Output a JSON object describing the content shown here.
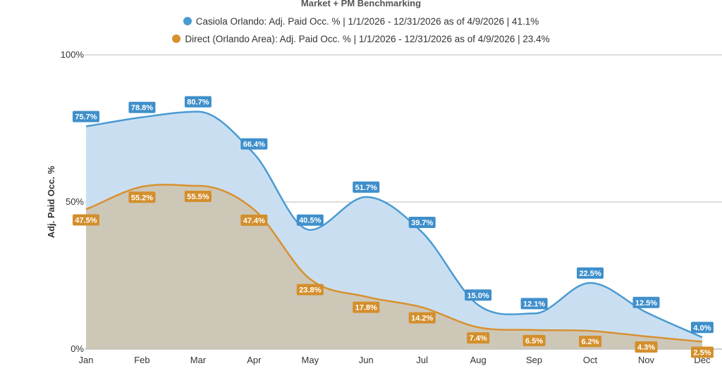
{
  "chart_data": {
    "type": "area",
    "title": "Market + PM Benchmarking",
    "ylabel": "Adj. Paid Occ. %",
    "xlabel": "",
    "categories": [
      "Jan",
      "Feb",
      "Mar",
      "Apr",
      "May",
      "Jun",
      "Jul",
      "Aug",
      "Sep",
      "Oct",
      "Nov",
      "Dec"
    ],
    "ylim": [
      0,
      100
    ],
    "yticks": [
      "0%",
      "50%",
      "100%"
    ],
    "grid": true,
    "legend_position": "top",
    "series": [
      {
        "name": "Casiola Orlando: Adj. Paid Occ. % | 1/1/2026 - 12/31/2026 as of 4/9/2026 | 41.1%",
        "values": [
          75.7,
          78.8,
          80.7,
          66.4,
          40.5,
          51.7,
          39.7,
          15.0,
          12.1,
          22.5,
          12.5,
          4.0
        ],
        "labels": [
          "75.7%",
          "78.8%",
          "80.7%",
          "66.4%",
          "40.5%",
          "51.7%",
          "39.7%",
          "15.0%",
          "12.1%",
          "22.5%",
          "12.5%",
          "4.0%"
        ],
        "line_color": "#4a9ad2",
        "fill_color": "#c9dff1",
        "label_color": "#3f8fcb"
      },
      {
        "name": "Direct (Orlando Area): Adj. Paid Occ. % | 1/1/2026 - 12/31/2026 as of 4/9/2026 | 23.4%",
        "values": [
          47.5,
          55.2,
          55.5,
          47.4,
          23.8,
          17.8,
          14.2,
          7.4,
          6.5,
          6.2,
          4.3,
          2.5
        ],
        "labels": [
          "47.5%",
          "55.2%",
          "55.5%",
          "47.4%",
          "23.8%",
          "17.8%",
          "14.2%",
          "7.4%",
          "6.5%",
          "6.2%",
          "4.3%",
          "2.5%"
        ],
        "line_color": "#d8912f",
        "fill_color": "#cdc7b8",
        "label_color": "#d38f2c"
      }
    ]
  }
}
